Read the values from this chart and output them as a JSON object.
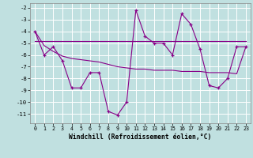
{
  "xlabel": "Windchill (Refroidissement éolien,°C)",
  "x": [
    0,
    1,
    2,
    3,
    4,
    5,
    6,
    7,
    8,
    9,
    10,
    11,
    12,
    13,
    14,
    15,
    16,
    17,
    18,
    19,
    20,
    21,
    22,
    23
  ],
  "line1": [
    -4.0,
    -6.0,
    -5.3,
    -6.5,
    -8.8,
    -8.8,
    -7.5,
    -7.5,
    -10.8,
    -11.1,
    -10.0,
    -2.2,
    -4.4,
    -5.0,
    -5.0,
    -6.0,
    -2.5,
    -3.4,
    -5.5,
    -8.6,
    -8.8,
    -8.0,
    -5.3,
    -5.3
  ],
  "line2": [
    -4.8,
    -4.8,
    -4.8,
    -4.8,
    -4.8,
    -4.8,
    -4.8,
    -4.8,
    -4.8,
    -4.8,
    -4.8,
    -4.8,
    -4.8,
    -4.8,
    -4.8,
    -4.8,
    -4.8,
    -4.8,
    -4.8,
    -4.8,
    -4.8,
    -4.8,
    -4.8,
    -4.8
  ],
  "line3": [
    -4.0,
    -5.2,
    -5.7,
    -6.1,
    -6.3,
    -6.4,
    -6.5,
    -6.6,
    -6.8,
    -7.0,
    -7.1,
    -7.2,
    -7.2,
    -7.3,
    -7.3,
    -7.3,
    -7.4,
    -7.4,
    -7.4,
    -7.5,
    -7.5,
    -7.5,
    -7.6,
    -5.3
  ],
  "ylim_min": -11.8,
  "ylim_max": -1.6,
  "yticks": [
    -11,
    -10,
    -9,
    -8,
    -7,
    -6,
    -5,
    -4,
    -3,
    -2
  ],
  "line_color": "#880088",
  "bg_color": "#c0e0e0",
  "grid_color": "#ffffff"
}
